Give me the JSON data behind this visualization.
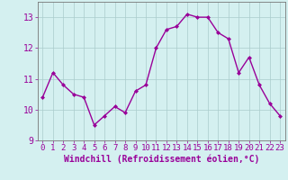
{
  "x": [
    0,
    1,
    2,
    3,
    4,
    5,
    6,
    7,
    8,
    9,
    10,
    11,
    12,
    13,
    14,
    15,
    16,
    17,
    18,
    19,
    20,
    21,
    22,
    23
  ],
  "y": [
    10.4,
    11.2,
    10.8,
    10.5,
    10.4,
    9.5,
    9.8,
    10.1,
    9.9,
    10.6,
    10.8,
    12.0,
    12.6,
    12.7,
    13.1,
    13.0,
    13.0,
    12.5,
    12.3,
    11.2,
    11.7,
    10.8,
    10.2,
    9.8
  ],
  "line_color": "#990099",
  "marker": "D",
  "marker_size": 2.0,
  "bg_color": "#d4f0f0",
  "grid_color": "#aacccc",
  "tick_color": "#990099",
  "xlabel": "Windchill (Refroidissement éolien,°C)",
  "ylim": [
    9.0,
    13.5
  ],
  "xlim": [
    -0.5,
    23.5
  ],
  "yticks": [
    9,
    10,
    11,
    12,
    13
  ],
  "xticks": [
    0,
    1,
    2,
    3,
    4,
    5,
    6,
    7,
    8,
    9,
    10,
    11,
    12,
    13,
    14,
    15,
    16,
    17,
    18,
    19,
    20,
    21,
    22,
    23
  ],
  "tick_fontsize": 6.5,
  "xlabel_fontsize": 7.0,
  "lw": 1.0
}
